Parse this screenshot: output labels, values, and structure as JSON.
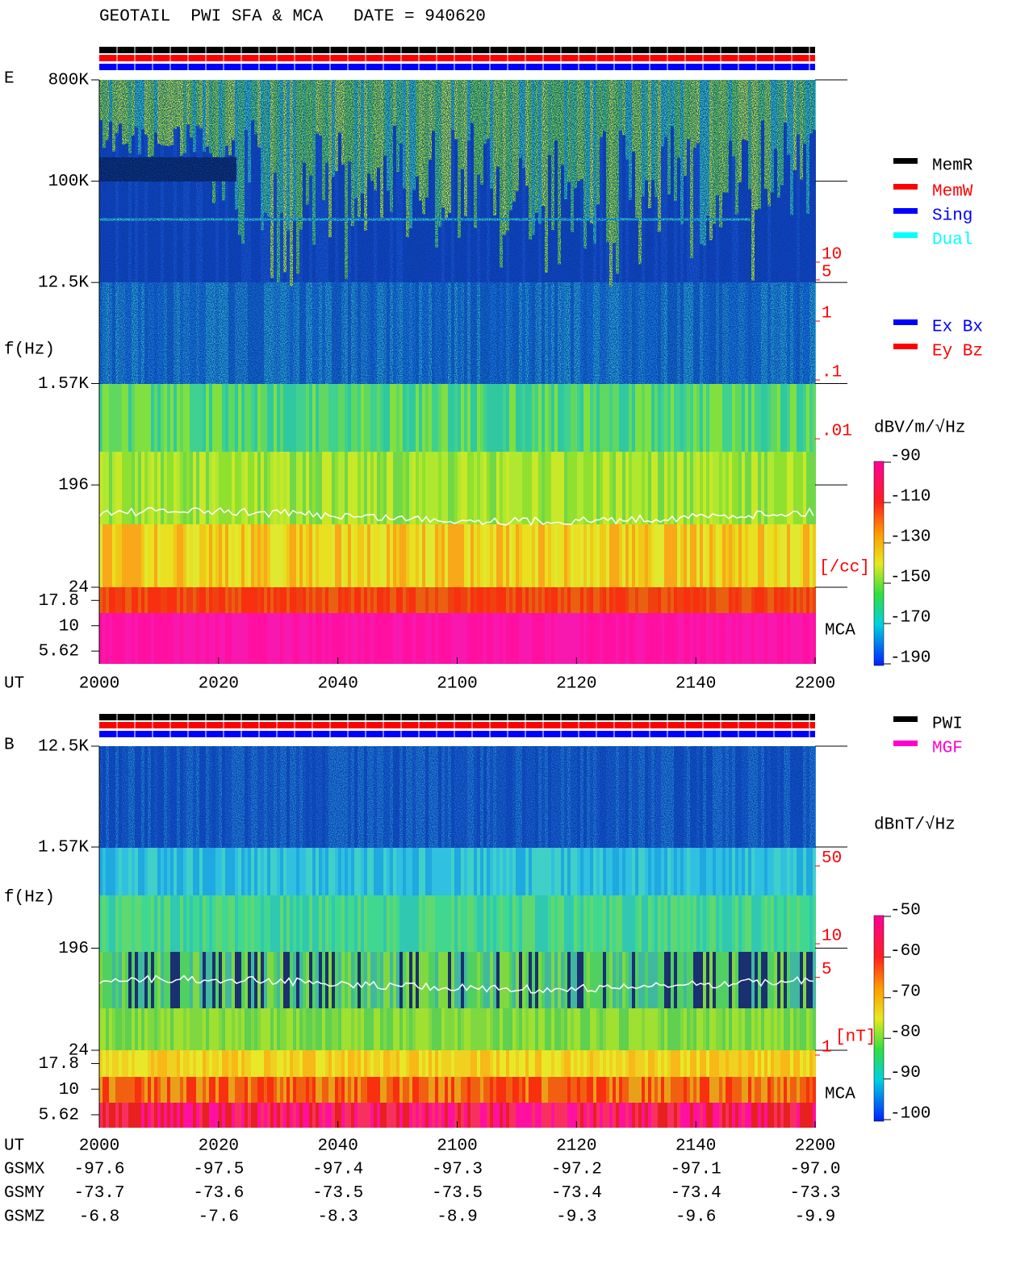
{
  "title": "GEOTAIL  PWI SFA & MCA   DATE = 940620",
  "chart_data": [
    {
      "type": "spectrogram",
      "panel_label": "E",
      "y_label": "f(Hz)",
      "x_label": "UT",
      "yscale": "log",
      "ylim": [
        24,
        800000
      ],
      "yticks": [
        {
          "value": 800000,
          "label": "800K"
        },
        {
          "value": 100000,
          "label": "100K"
        },
        {
          "value": 12500,
          "label": "12.5K"
        },
        {
          "value": 1570,
          "label": "1.57K"
        },
        196,
        24
      ],
      "mca_ylim": [
        4.2,
        24
      ],
      "mca_yticks": [
        17.8,
        10,
        5.62
      ],
      "mca_label": "MCA",
      "categories": [
        "2000",
        "2020",
        "2040",
        "2100",
        "2120",
        "2140",
        "2200"
      ],
      "density_ylim": [
        0.0001,
        10000
      ],
      "density_yticks": [
        10,
        5,
        1,
        {
          "value": 0.1,
          "label": ".1"
        },
        {
          "value": 0.01,
          "label": ".01"
        }
      ],
      "density_unit": "[/cc]",
      "density_color": "#ff0000",
      "colorbar": {
        "label": "dBV/m/√Hz",
        "clim": [
          -190,
          -90
        ],
        "ticks": [
          -90,
          -110,
          -130,
          -150,
          -170,
          -190
        ]
      },
      "legends": [
        [
          {
            "name": "MemR",
            "color": "#000000"
          },
          {
            "name": "MemW",
            "color": "#ff0000"
          },
          {
            "name": "Sing",
            "color": "#0000ff"
          },
          {
            "name": "Dual",
            "color": "#00ffff"
          }
        ],
        [
          {
            "name": "Ex Bx",
            "color": "#0000ff"
          },
          {
            "name": "Ey Bz",
            "color": "#ff0000"
          }
        ]
      ]
    },
    {
      "type": "spectrogram",
      "panel_label": "B",
      "y_label": "f(Hz)",
      "x_label": "UT",
      "yscale": "log",
      "ylim": [
        24,
        12500
      ],
      "yticks": [
        {
          "value": 12500,
          "label": "12.5K"
        },
        {
          "value": 1570,
          "label": "1.57K"
        },
        196,
        24
      ],
      "mca_ylim": [
        4.2,
        24
      ],
      "mca_yticks": [
        17.8,
        10,
        5.62
      ],
      "mca_label": "MCA",
      "categories": [
        "2000",
        "2020",
        "2040",
        "2100",
        "2120",
        "2140",
        "2200"
      ],
      "density_ylim": [
        1,
        100
      ],
      "density_yticks": [
        50,
        10,
        5,
        1
      ],
      "density_unit": "[nT]",
      "density_color": "#ff0000",
      "colorbar": {
        "label": "dBnT/√Hz",
        "clim": [
          -100,
          -50
        ],
        "ticks": [
          -50,
          -60,
          -70,
          -80,
          -90,
          -100
        ]
      },
      "legends": [
        [
          {
            "name": "PWI",
            "color": "#000000"
          },
          {
            "name": "MGF",
            "color": "#ff00cc"
          }
        ]
      ]
    }
  ],
  "ephemeris": {
    "rows": [
      {
        "name": "GSMX",
        "values": [
          "-97.6",
          "-97.5",
          "-97.4",
          "-97.3",
          "-97.2",
          "-97.1",
          "-97.0"
        ]
      },
      {
        "name": "GSMY",
        "values": [
          "-73.7",
          "-73.6",
          "-73.5",
          "-73.5",
          "-73.4",
          "-73.4",
          "-73.3"
        ]
      },
      {
        "name": "GSMZ",
        "values": [
          "-6.8",
          "-7.6",
          "-8.3",
          "-8.9",
          "-9.3",
          "-9.6",
          "-9.9"
        ]
      }
    ]
  }
}
